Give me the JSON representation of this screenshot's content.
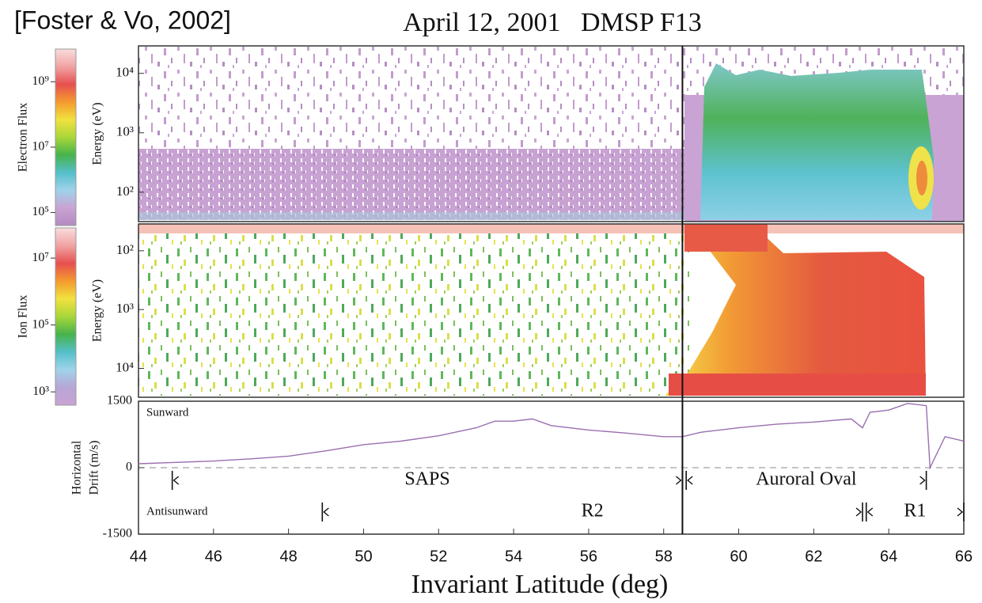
{
  "citation": "[Foster & Vo, 2002]",
  "chart_data": [
    {
      "type": "heatmap",
      "title": "April 12, 2001   DMSP F13",
      "ylabel": "Energy (eV)",
      "log_y": true,
      "ylim": [
        32,
        29000
      ],
      "yticks": [
        {
          "value": 100,
          "label": "10²"
        },
        {
          "value": 1000,
          "label": "10³"
        },
        {
          "value": 10000,
          "label": "10⁴"
        }
      ],
      "colorbar": {
        "label": "Electron Flux",
        "log": true,
        "lim": [
          40000,
          10000000000
        ],
        "ticks": [
          {
            "value": 100000,
            "label": "10⁵"
          },
          {
            "value": 10000000,
            "label": "10⁷"
          },
          {
            "value": 1000000000,
            "label": "10⁹"
          }
        ],
        "colors": [
          "#b48ac0",
          "#c9a3d3",
          "#9fd3ea",
          "#55bfc9",
          "#47b34b",
          "#a9d63a",
          "#f1e23f",
          "#f49a2e",
          "#e65050",
          "#f1a3a3",
          "#f9dcdc"
        ]
      }
    },
    {
      "type": "heatmap",
      "ylabel": "Energy (eV)",
      "log_y": true,
      "ylim": [
        31000,
        35
      ],
      "yticks": [
        {
          "value": 100,
          "label": "10²"
        },
        {
          "value": 1000,
          "label": "10³"
        },
        {
          "value": 10000,
          "label": "10⁴"
        }
      ],
      "colorbar": {
        "label": "Ion Flux",
        "log": true,
        "lim": [
          400,
          80000000
        ],
        "ticks": [
          {
            "value": 1000,
            "label": "10³"
          },
          {
            "value": 100000,
            "label": "10⁵"
          },
          {
            "value": 10000000,
            "label": "10⁷"
          }
        ],
        "colors": [
          "#c9a3d3",
          "#b7a6d6",
          "#9fd3ea",
          "#55bfc9",
          "#47b34b",
          "#a9d63a",
          "#f1e23f",
          "#f49a2e",
          "#e65050",
          "#f1a3a3",
          "#f9dcdc"
        ]
      }
    },
    {
      "type": "line",
      "xlabel": "Invariant Latitude (deg)",
      "ylabel": [
        "Horizontal",
        "Drift (m/s)"
      ],
      "color": "#9b6fb0",
      "x": [
        44,
        45,
        46,
        47,
        48,
        49,
        50,
        51,
        52,
        53,
        53.5,
        54,
        54.5,
        55,
        56,
        57,
        58,
        58.5,
        59,
        60,
        61,
        62,
        63,
        63.3,
        63.5,
        64,
        64.5,
        65,
        65.1,
        65.5,
        66
      ],
      "values": [
        90,
        120,
        150,
        200,
        260,
        380,
        520,
        600,
        720,
        900,
        1050,
        1050,
        1100,
        950,
        850,
        780,
        700,
        700,
        800,
        900,
        980,
        1030,
        1100,
        900,
        1250,
        1300,
        1450,
        1400,
        0,
        700,
        600
      ],
      "xlim": [
        44,
        66
      ],
      "xticks": [
        44,
        46,
        48,
        50,
        52,
        54,
        56,
        58,
        60,
        62,
        64,
        66
      ],
      "ylim": [
        -1500,
        1500
      ],
      "yticks": [
        -1500,
        0,
        1500
      ],
      "zero_line": true,
      "annotations": [
        "Sunward",
        "Antisunward"
      ],
      "boundary": 58.5,
      "regions": [
        [
          {
            "label": "SAPS",
            "start": 44.9,
            "end": 58.5
          },
          {
            "label": "Auroral Oval",
            "start": 58.6,
            "end": 65
          }
        ],
        [
          {
            "label": "R2",
            "start": 48.9,
            "end": 63.3
          },
          {
            "label": "R1",
            "start": 63.4,
            "end": 66
          }
        ]
      ]
    }
  ]
}
